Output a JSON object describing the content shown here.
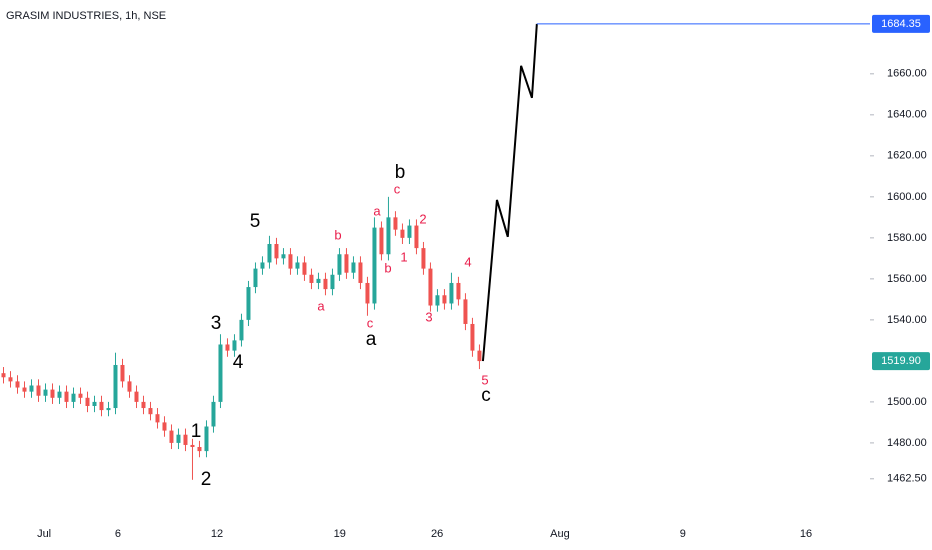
{
  "chart_data": {
    "type": "candlestick",
    "title": "GRASIM INDUSTRIES, 1h, NSE",
    "up_color": "#26a69a",
    "down_color": "#ef5350",
    "xlim": [
      0,
      248.6
    ],
    "xticks": [
      {
        "value": 12.6,
        "label": "Jul"
      },
      {
        "value": 33.7,
        "label": "6"
      },
      {
        "value": 62,
        "label": "12"
      },
      {
        "value": 97.1,
        "label": "19"
      },
      {
        "value": 124.9,
        "label": "26"
      },
      {
        "value": 160,
        "label": "Aug"
      },
      {
        "value": 195.1,
        "label": "9"
      },
      {
        "value": 230.3,
        "label": "16"
      }
    ],
    "ylim": [
      1442.4,
      1696
    ],
    "yticks": [
      {
        "value": 1462.5,
        "label": "1462.50"
      },
      {
        "value": 1480,
        "label": "1480.00"
      },
      {
        "value": 1500,
        "label": "1500.00"
      },
      {
        "value": 1540,
        "label": "1540.00"
      },
      {
        "value": 1560,
        "label": "1560.00"
      },
      {
        "value": 1580,
        "label": "1580.00"
      },
      {
        "value": 1600,
        "label": "1600.00"
      },
      {
        "value": 1620,
        "label": "1620.00"
      },
      {
        "value": 1640,
        "label": "1640.00"
      },
      {
        "value": 1660,
        "label": "1660.00"
      }
    ],
    "x": [
      1,
      3,
      5,
      7,
      9,
      11,
      13,
      15,
      17,
      19,
      21,
      23,
      25,
      27,
      29,
      31,
      33,
      35,
      37,
      39,
      41,
      43,
      45,
      47,
      49,
      51,
      53,
      55,
      57,
      59,
      61,
      63,
      65,
      67,
      69,
      71,
      73,
      75,
      77,
      79,
      81,
      83,
      85,
      87,
      89,
      91,
      93,
      95,
      97,
      99,
      101,
      103,
      105,
      107,
      109,
      111,
      113,
      115,
      117,
      119,
      121,
      123,
      125,
      127,
      129,
      131,
      133,
      135,
      137
    ],
    "open": [
      1514,
      1512,
      1510,
      1507,
      1505,
      1508,
      1503,
      1506,
      1502,
      1505,
      1500,
      1504,
      1502,
      1498,
      1500,
      1496,
      1497,
      1518,
      1510,
      1505,
      1500,
      1497,
      1494,
      1490,
      1486,
      1480,
      1484,
      1479,
      1478,
      1476,
      1488,
      1500,
      1528,
      1525,
      1530,
      1540,
      1556,
      1565,
      1568,
      1577,
      1570,
      1572,
      1565,
      1568,
      1562,
      1558,
      1560,
      1555,
      1562,
      1572,
      1563,
      1568,
      1558,
      1548,
      1585,
      1572,
      1590,
      1584,
      1580,
      1586,
      1575,
      1565,
      1547,
      1552,
      1548,
      1558,
      1550,
      1538,
      1525
    ],
    "high": [
      1517,
      1515,
      1513,
      1510,
      1511,
      1511,
      1509,
      1509,
      1508,
      1508,
      1507,
      1507,
      1505,
      1503,
      1503,
      1500,
      1524,
      1521,
      1513,
      1508,
      1503,
      1500,
      1497,
      1493,
      1489,
      1487,
      1487,
      1482,
      1481,
      1491,
      1503,
      1533,
      1531,
      1533,
      1543,
      1559,
      1568,
      1571,
      1581,
      1580,
      1575,
      1575,
      1571,
      1571,
      1565,
      1563,
      1563,
      1565,
      1575,
      1575,
      1571,
      1571,
      1561,
      1590,
      1588,
      1600,
      1593,
      1587,
      1589,
      1589,
      1578,
      1568,
      1555,
      1555,
      1563,
      1561,
      1553,
      1541,
      1528
    ],
    "low": [
      1509,
      1507,
      1504,
      1502,
      1502,
      1500,
      1500,
      1499,
      1499,
      1497,
      1497,
      1499,
      1495,
      1495,
      1493,
      1493,
      1494,
      1507,
      1502,
      1497,
      1494,
      1491,
      1487,
      1483,
      1477,
      1477,
      1476,
      1462,
      1473,
      1473,
      1485,
      1497,
      1522,
      1522,
      1527,
      1537,
      1553,
      1562,
      1565,
      1567,
      1567,
      1562,
      1562,
      1559,
      1555,
      1555,
      1552,
      1552,
      1559,
      1560,
      1560,
      1555,
      1542,
      1545,
      1569,
      1569,
      1581,
      1577,
      1577,
      1572,
      1562,
      1544,
      1544,
      1545,
      1545,
      1547,
      1535,
      1522,
      1516
    ],
    "close": [
      1512,
      1510,
      1507,
      1505,
      1508,
      1503,
      1506,
      1502,
      1505,
      1500,
      1504,
      1502,
      1498,
      1500,
      1496,
      1497,
      1518,
      1510,
      1505,
      1500,
      1497,
      1494,
      1490,
      1486,
      1480,
      1484,
      1479,
      1478,
      1476,
      1488,
      1500,
      1528,
      1525,
      1530,
      1540,
      1556,
      1565,
      1568,
      1577,
      1570,
      1572,
      1565,
      1568,
      1562,
      1558,
      1560,
      1555,
      1562,
      1572,
      1563,
      1568,
      1558,
      1548,
      1585,
      1572,
      1590,
      1584,
      1580,
      1586,
      1575,
      1565,
      1547,
      1552,
      1548,
      1558,
      1550,
      1538,
      1525,
      1519.9
    ],
    "projection": {
      "color": "#000000",
      "x": [
        138,
        142,
        145.1,
        148.9,
        152,
        153.4
      ],
      "values": [
        1519.9,
        1598.5,
        1580.5,
        1663.9,
        1648.3,
        1684.35
      ]
    },
    "price_lines": [
      {
        "value": 1684.35,
        "label": "1684.35",
        "color": "#2962ff"
      },
      {
        "value": 1519.9,
        "label": "1519.90",
        "color": "#26a69a"
      }
    ],
    "annotations": [
      {
        "text": "5",
        "color": "#000000"
      },
      {
        "text": "3",
        "color": "#000000"
      },
      {
        "text": "4",
        "color": "#000000"
      },
      {
        "text": "1",
        "color": "#000000"
      },
      {
        "text": "2",
        "color": "#000000"
      },
      {
        "text": "a",
        "color": "#000000"
      },
      {
        "text": "b",
        "color": "#000000"
      },
      {
        "text": "c",
        "color": "#000000"
      },
      {
        "text": "a",
        "color": "#e91e4b"
      },
      {
        "text": "b",
        "color": "#e91e4b"
      },
      {
        "text": "c",
        "color": "#e91e4b"
      },
      {
        "text": "b",
        "color": "#e91e4b"
      },
      {
        "text": "a",
        "color": "#e91e4b"
      },
      {
        "text": "c",
        "color": "#e91e4b"
      },
      {
        "text": "2",
        "color": "#e91e4b"
      },
      {
        "text": "1",
        "color": "#e91e4b"
      },
      {
        "text": "3",
        "color": "#e91e4b"
      },
      {
        "text": "4",
        "color": "#e91e4b"
      },
      {
        "text": "5",
        "color": "#e91e4b"
      }
    ]
  }
}
